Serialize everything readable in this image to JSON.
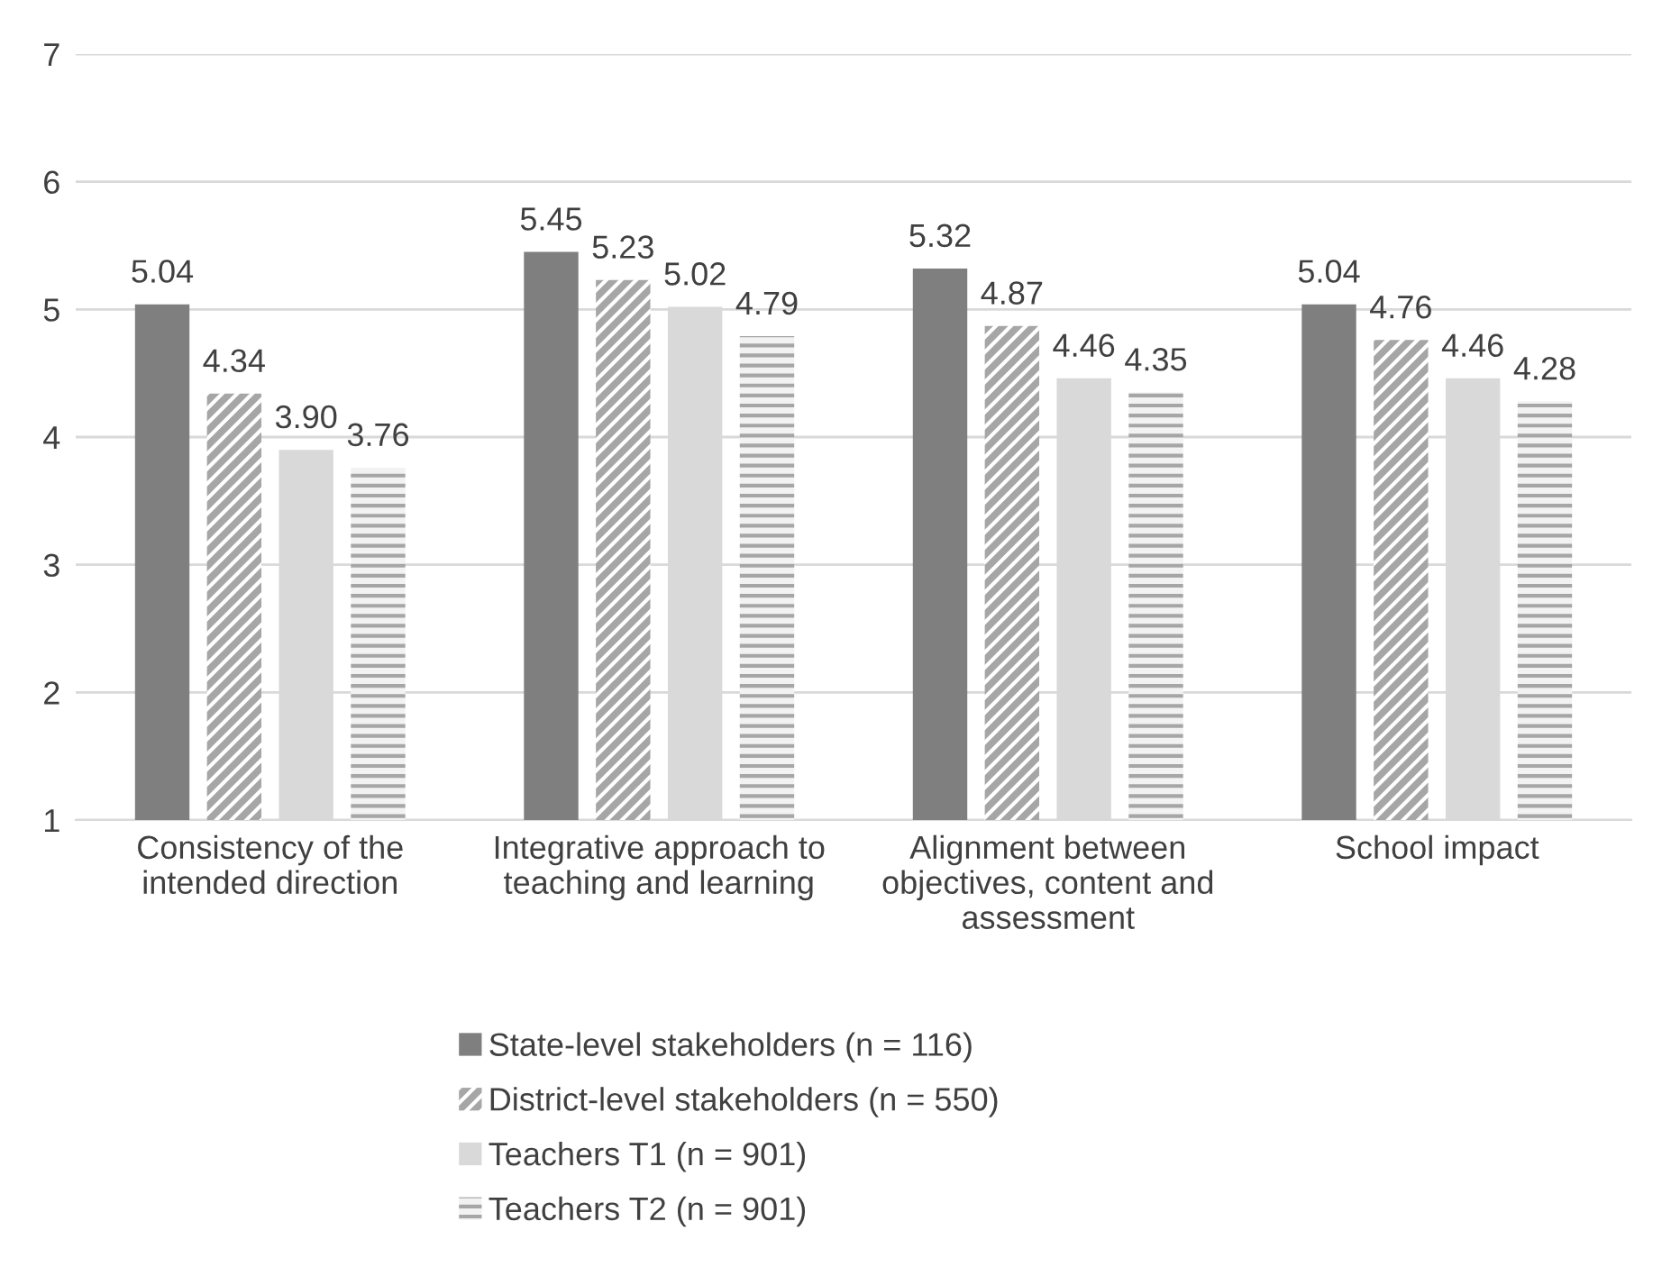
{
  "chart_data": {
    "type": "bar",
    "categories": [
      "Consistency of the\nintended direction",
      "Integrative approach to\nteaching and learning",
      "Alignment between\nobjectives, content and\nassessment",
      "School impact"
    ],
    "series": [
      {
        "name": "State-level stakeholders (n = 116)",
        "color": "#7f7f7f",
        "values": [
          5.04,
          5.45,
          5.32,
          5.04
        ],
        "value_labels": [
          "5.04",
          "5.45",
          "5.32",
          "5.04"
        ]
      },
      {
        "name": "District-level stakeholders (n = 550)",
        "color": "#a6a6a6",
        "values": [
          4.34,
          5.23,
          4.87,
          4.76
        ],
        "value_labels": [
          "4.34",
          "5.23",
          "4.87",
          "4.76"
        ]
      },
      {
        "name": "Teachers T1 (n = 901)",
        "color": "#d9d9d9",
        "values": [
          3.9,
          5.02,
          4.46,
          4.46
        ],
        "value_labels": [
          "3.90",
          "5.02",
          "4.46",
          "4.46"
        ]
      },
      {
        "name": "Teachers T2 (n = 901)",
        "color": "#a6a6a6",
        "values": [
          3.76,
          4.79,
          4.35,
          4.28
        ],
        "value_labels": [
          "3.76",
          "4.79",
          "4.35",
          "4.28"
        ]
      }
    ],
    "ylim": [
      1,
      7
    ],
    "yticks": [
      1,
      2,
      3,
      4,
      5,
      6,
      7
    ],
    "grid": "y",
    "legend": "bottom"
  }
}
